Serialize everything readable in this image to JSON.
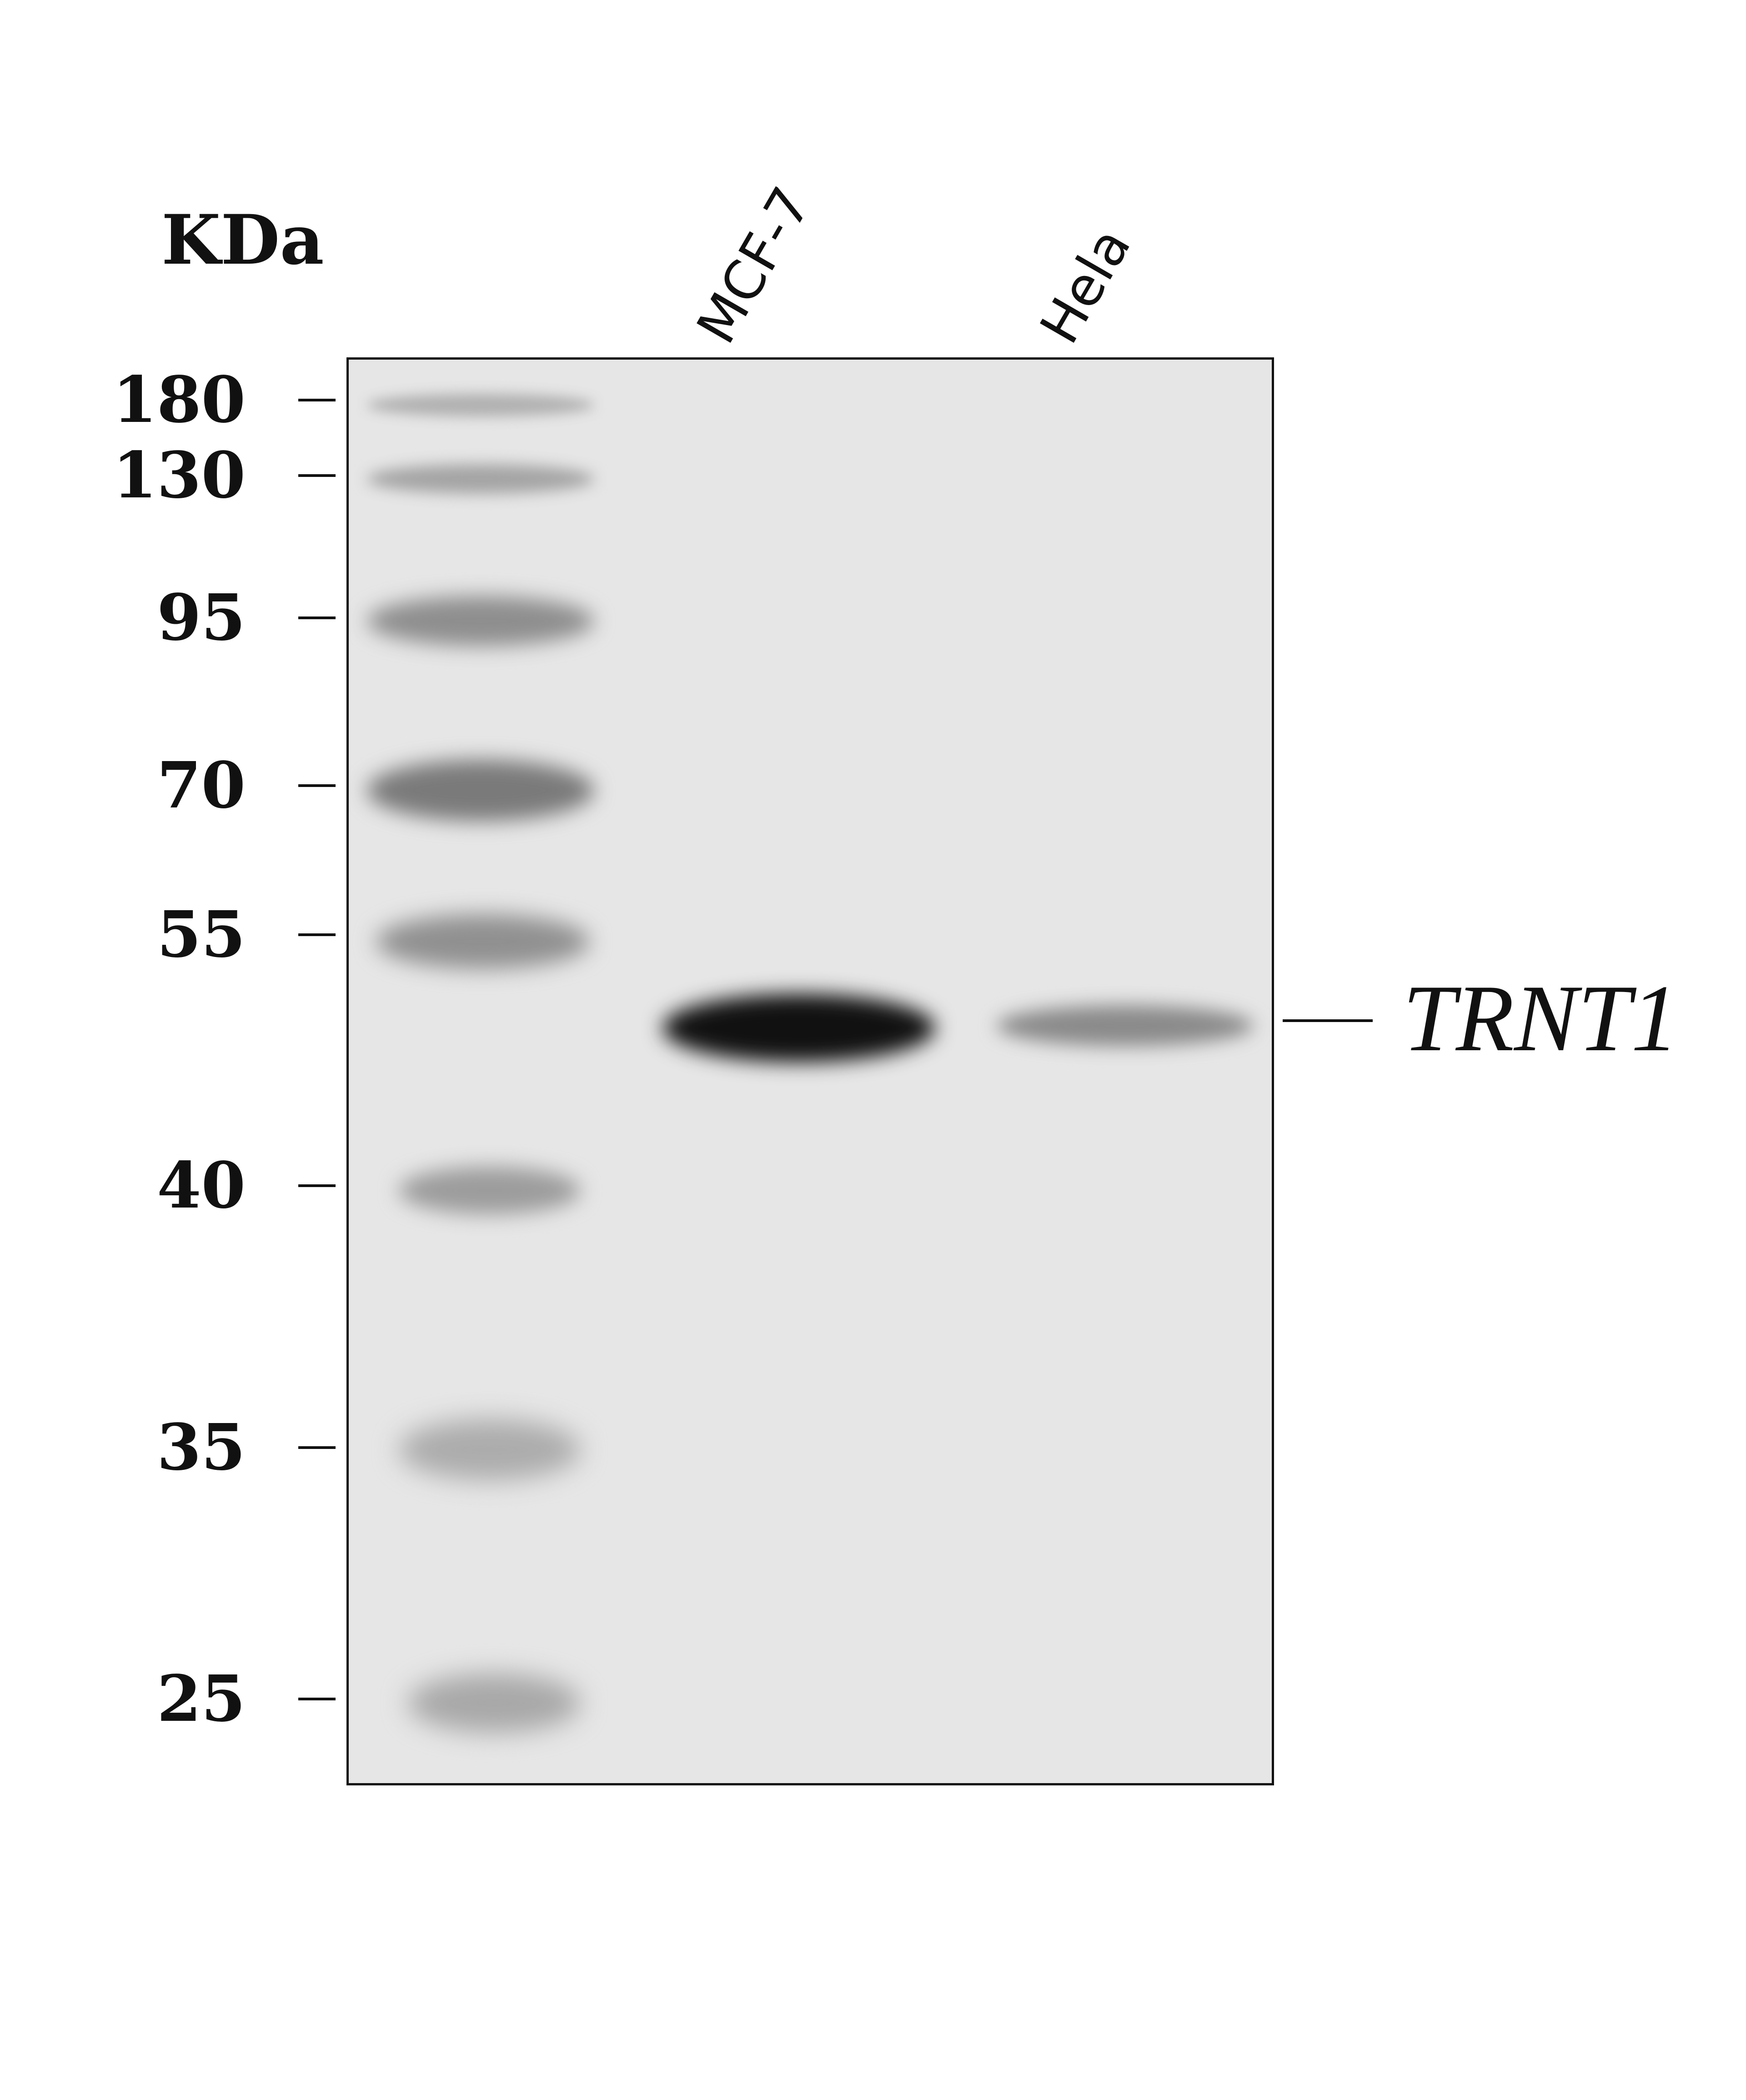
{
  "unit_label": "KDa",
  "lanes": [
    "MCF-7",
    "Hela"
  ],
  "markers": [
    "180",
    "130",
    "95",
    "70",
    "55",
    "40",
    "35",
    "25"
  ],
  "target": "TRNT1"
}
